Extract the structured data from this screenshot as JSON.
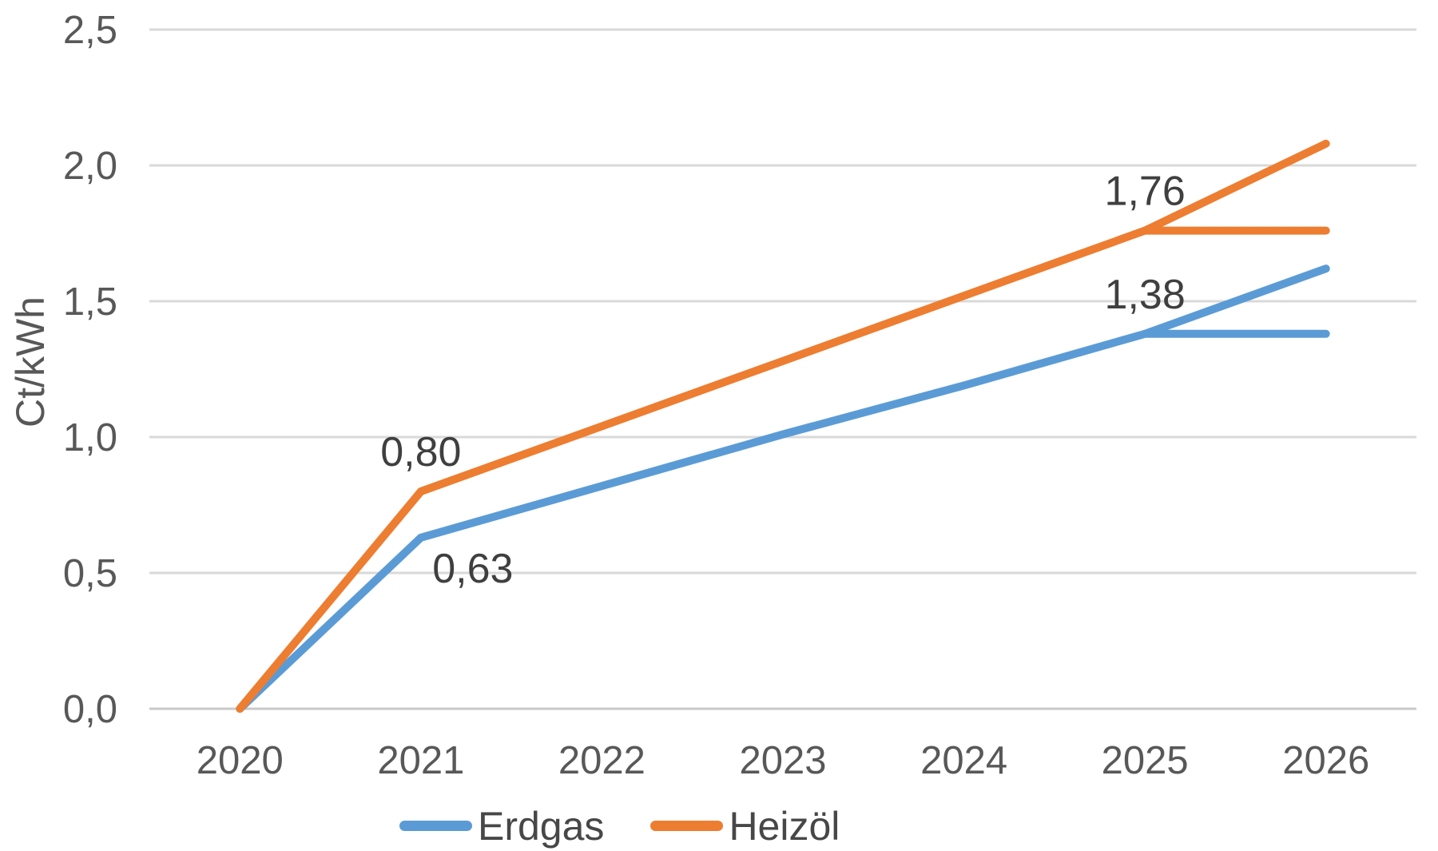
{
  "chart_data": {
    "type": "line",
    "title": "",
    "xlabel": "",
    "ylabel": "Ct/kWh",
    "ylim": [
      0,
      2.5
    ],
    "grid": "horizontal",
    "legend_position": "bottom",
    "categories": [
      2020,
      2021,
      2022,
      2023,
      2024,
      2025,
      2026
    ],
    "x_tick_labels": [
      "2020",
      "2021",
      "2022",
      "2023",
      "2024",
      "2025",
      "2026"
    ],
    "y_ticks": [
      {
        "value": 0.0,
        "label": "0,0"
      },
      {
        "value": 0.5,
        "label": "0,5"
      },
      {
        "value": 1.0,
        "label": "1,0"
      },
      {
        "value": 1.5,
        "label": "1,5"
      },
      {
        "value": 2.0,
        "label": "2,0"
      },
      {
        "value": 2.5,
        "label": "2,5"
      }
    ],
    "series": [
      {
        "name": "Erdgas",
        "color": "#5B9BD5",
        "values": [
          0.0,
          0.63,
          0.82,
          1.01,
          1.19,
          1.38,
          1.62
        ],
        "flat_branch": {
          "from_year": 2025,
          "to_year": 2026,
          "value": 1.38
        }
      },
      {
        "name": "Heizöl",
        "color": "#ED7D31",
        "values": [
          0.0,
          0.8,
          1.04,
          1.28,
          1.52,
          1.76,
          2.08
        ],
        "flat_branch": {
          "from_year": 2025,
          "to_year": 2026,
          "value": 1.76
        }
      }
    ],
    "data_labels": [
      {
        "text": "0,80",
        "series": "Heizöl",
        "year": 2021,
        "value": 0.8,
        "position": "above"
      },
      {
        "text": "0,63",
        "series": "Erdgas",
        "year": 2021,
        "value": 0.63,
        "position": "below-right"
      },
      {
        "text": "1,76",
        "series": "Heizöl",
        "year": 2025,
        "value": 1.76,
        "position": "above"
      },
      {
        "text": "1,38",
        "series": "Erdgas",
        "year": 2025,
        "value": 1.38,
        "position": "above"
      }
    ],
    "colors": {
      "gridline": "#D9D9D9",
      "axis_line": "#C9C9C9",
      "axis_text": "#585858",
      "data_label_text": "#3F3F3F"
    }
  }
}
